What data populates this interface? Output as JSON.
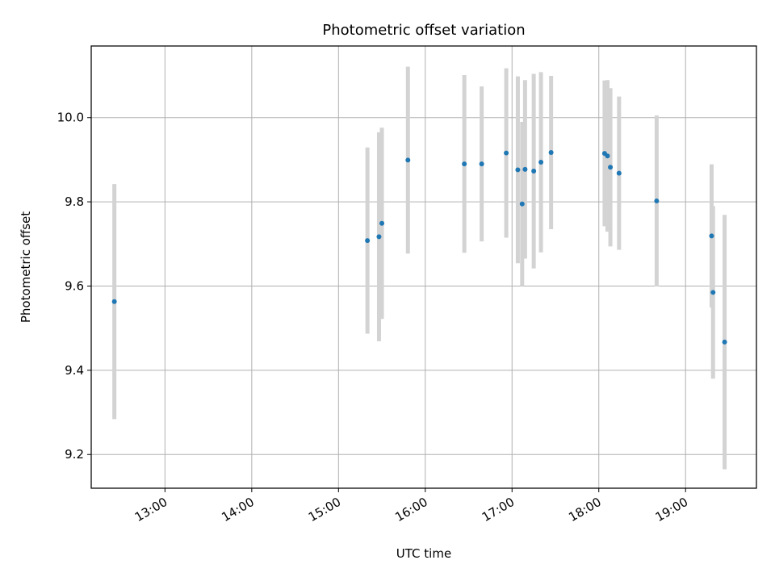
{
  "chart_data": {
    "type": "scatter",
    "title": "Photometric offset variation",
    "xlabel": "UTC time",
    "ylabel": "Photometric offset",
    "grid": true,
    "legend": "none",
    "error_bar_color": "#d3d3d3",
    "point_color": "#1f77b4",
    "xlim": [
      "12:09",
      "19:49"
    ],
    "ylim": [
      9.12,
      10.17
    ],
    "xticks": [
      "13:00",
      "14:00",
      "15:00",
      "16:00",
      "17:00",
      "18:00",
      "19:00"
    ],
    "yticks": [
      "9.2",
      "9.4",
      "9.6",
      "9.8",
      "10.0"
    ],
    "series": [
      {
        "points": [
          {
            "x": "12:25",
            "y": 9.563,
            "err": 0.279
          },
          {
            "x": "15:20",
            "y": 9.708,
            "err": 0.221
          },
          {
            "x": "15:28",
            "y": 9.717,
            "err": 0.248
          },
          {
            "x": "15:30",
            "y": 9.749,
            "err": 0.227
          },
          {
            "x": "15:48",
            "y": 9.899,
            "err": 0.222
          },
          {
            "x": "16:27",
            "y": 9.89,
            "err": 0.211
          },
          {
            "x": "16:39",
            "y": 9.89,
            "err": 0.184
          },
          {
            "x": "16:56",
            "y": 9.916,
            "err": 0.201
          },
          {
            "x": "17:04",
            "y": 9.876,
            "err": 0.222
          },
          {
            "x": "17:07",
            "y": 9.795,
            "err": 0.195
          },
          {
            "x": "17:09",
            "y": 9.877,
            "err": 0.212
          },
          {
            "x": "17:15",
            "y": 9.873,
            "err": 0.231
          },
          {
            "x": "17:20",
            "y": 9.894,
            "err": 0.214
          },
          {
            "x": "17:27",
            "y": 9.917,
            "err": 0.182
          },
          {
            "x": "18:04",
            "y": 9.915,
            "err": 0.173
          },
          {
            "x": "18:06",
            "y": 9.909,
            "err": 0.18
          },
          {
            "x": "18:08",
            "y": 9.882,
            "err": 0.188
          },
          {
            "x": "18:14",
            "y": 9.868,
            "err": 0.182
          },
          {
            "x": "18:40",
            "y": 9.802,
            "err": 0.203
          },
          {
            "x": "19:18",
            "y": 9.719,
            "err": 0.17
          },
          {
            "x": "19:19",
            "y": 9.585,
            "err": 0.205
          },
          {
            "x": "19:27",
            "y": 9.467,
            "err": 0.302
          }
        ]
      }
    ]
  }
}
